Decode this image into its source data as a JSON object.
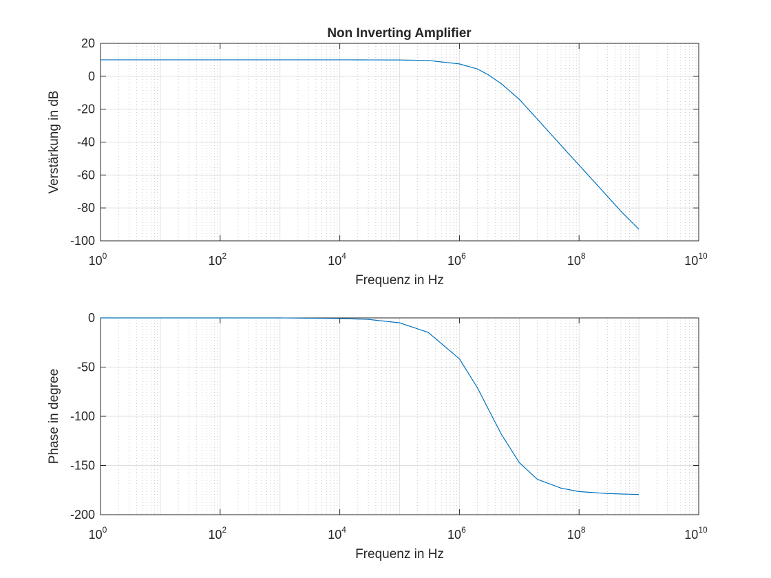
{
  "title": "Non Inverting Amplifier",
  "chart_data": [
    {
      "type": "line",
      "title": "Non Inverting Amplifier",
      "xlabel": "Frequenz in Hz",
      "ylabel": "Verstärkung in dB",
      "xscale": "log",
      "xlim": [
        1,
        10000000000
      ],
      "ylim": [
        -100,
        20
      ],
      "grid": true,
      "minor_grid": true,
      "x_ticks": [
        {
          "base": "10",
          "exp": "0"
        },
        {
          "base": "10",
          "exp": "2"
        },
        {
          "base": "10",
          "exp": "4"
        },
        {
          "base": "10",
          "exp": "6"
        },
        {
          "base": "10",
          "exp": "8"
        },
        {
          "base": "10",
          "exp": "10"
        }
      ],
      "y_ticks": [
        "20",
        "0",
        "-20",
        "-40",
        "-60",
        "-80",
        "-100"
      ],
      "line_color": "#0072bd",
      "series": [
        {
          "x": [
            1,
            10,
            100,
            1000,
            10000,
            100000,
            300000,
            1000000,
            2000000,
            3000000,
            5000000,
            10000000,
            20000000,
            50000000,
            100000000,
            200000000,
            500000000,
            1000000000
          ],
          "y": [
            10,
            10,
            10,
            10,
            10,
            9.9,
            9.6,
            7.5,
            4.4,
            1.0,
            -4.5,
            -14,
            -26,
            -42,
            -54,
            -66,
            -82,
            -93
          ]
        }
      ]
    },
    {
      "type": "line",
      "title": "",
      "xlabel": "Frequenz in Hz",
      "ylabel": "Phase in degree",
      "xscale": "log",
      "xlim": [
        1,
        10000000000
      ],
      "ylim": [
        -200,
        0
      ],
      "grid": true,
      "minor_grid": true,
      "x_ticks": [
        {
          "base": "10",
          "exp": "0"
        },
        {
          "base": "10",
          "exp": "2"
        },
        {
          "base": "10",
          "exp": "4"
        },
        {
          "base": "10",
          "exp": "6"
        },
        {
          "base": "10",
          "exp": "8"
        },
        {
          "base": "10",
          "exp": "10"
        }
      ],
      "y_ticks": [
        "0",
        "-50",
        "-100",
        "-150",
        "-200"
      ],
      "line_color": "#0072bd",
      "series": [
        {
          "x": [
            1,
            10,
            100,
            1000,
            10000,
            30000,
            100000,
            300000,
            1000000,
            2000000,
            3000000,
            5000000,
            10000000,
            20000000,
            50000000,
            100000000,
            300000000,
            1000000000
          ],
          "y": [
            0,
            0,
            0,
            0,
            -0.6,
            -1.5,
            -5,
            -14.7,
            -41.6,
            -71,
            -92,
            -118,
            -147,
            -164,
            -173,
            -176.5,
            -178.5,
            -179.5
          ]
        }
      ]
    }
  ]
}
